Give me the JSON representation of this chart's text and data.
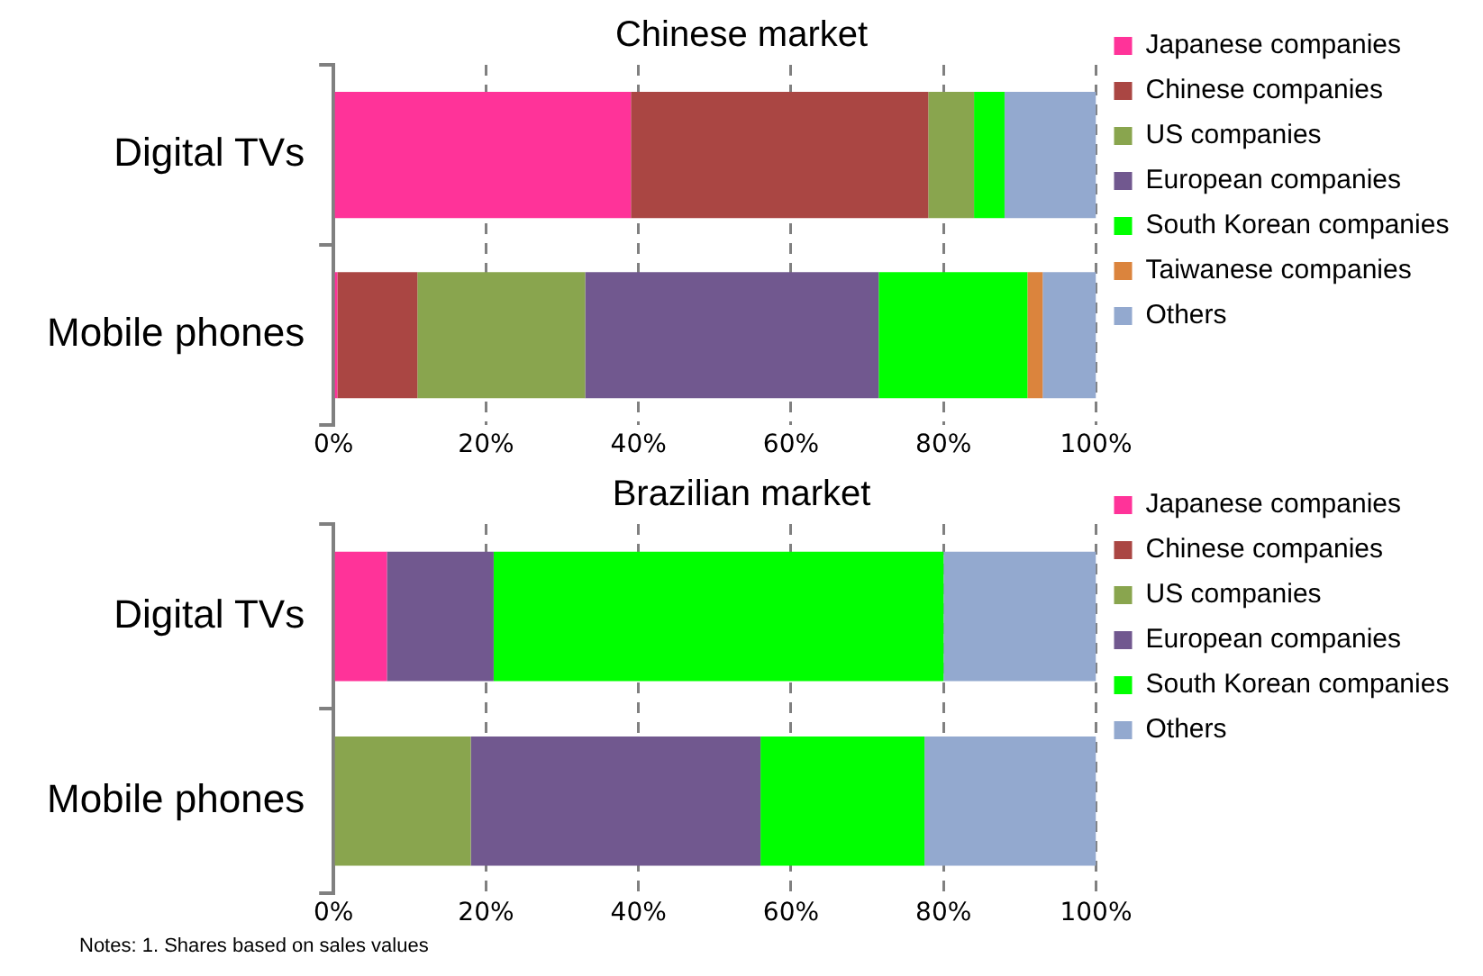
{
  "chart_data": [
    {
      "type": "bar",
      "orientation": "horizontal",
      "stacked": true,
      "title": "Chinese market",
      "categories": [
        "Digital TVs",
        "Mobile phones"
      ],
      "series": [
        {
          "name": "Japanese companies",
          "color": "#ff3399",
          "values": [
            39,
            0.5
          ]
        },
        {
          "name": "Chinese companies",
          "color": "#aa4643",
          "values": [
            39,
            10.5
          ]
        },
        {
          "name": "US companies",
          "color": "#89a54e",
          "values": [
            6,
            22
          ]
        },
        {
          "name": "European companies",
          "color": "#71588f",
          "values": [
            0,
            38.5
          ]
        },
        {
          "name": "South Korean companies",
          "color": "#00ff00",
          "values": [
            4,
            19.5
          ]
        },
        {
          "name": "Taiwanese companies",
          "color": "#db843d",
          "values": [
            0,
            2
          ]
        },
        {
          "name": "Others",
          "color": "#93a9cf",
          "values": [
            12,
            7
          ]
        }
      ],
      "xlim": [
        0,
        100
      ],
      "xticks": [
        {
          "value": 0,
          "label": "0%"
        },
        {
          "value": 20,
          "label": "20%"
        },
        {
          "value": 40,
          "label": "40%"
        },
        {
          "value": 60,
          "label": "60%"
        },
        {
          "value": 80,
          "label": "80%"
        },
        {
          "value": 100,
          "label": "100%"
        }
      ],
      "grid": "x",
      "legend": "right"
    },
    {
      "type": "bar",
      "orientation": "horizontal",
      "stacked": true,
      "title": "Brazilian market",
      "categories": [
        "Digital TVs",
        "Mobile phones"
      ],
      "series": [
        {
          "name": "Japanese companies",
          "color": "#ff3399",
          "values": [
            7,
            0
          ]
        },
        {
          "name": "Chinese companies",
          "color": "#aa4643",
          "values": [
            0,
            0
          ]
        },
        {
          "name": "US companies",
          "color": "#89a54e",
          "values": [
            0,
            18
          ]
        },
        {
          "name": "European companies",
          "color": "#71588f",
          "values": [
            14,
            38
          ]
        },
        {
          "name": "South Korean companies",
          "color": "#00ff00",
          "values": [
            59,
            21.5
          ]
        },
        {
          "name": "Others",
          "color": "#93a9cf",
          "values": [
            20,
            22.5
          ]
        }
      ],
      "xlim": [
        0,
        100
      ],
      "xticks": [
        {
          "value": 0,
          "label": "0%"
        },
        {
          "value": 20,
          "label": "20%"
        },
        {
          "value": 40,
          "label": "40%"
        },
        {
          "value": 60,
          "label": "60%"
        },
        {
          "value": 80,
          "label": "80%"
        },
        {
          "value": 100,
          "label": "100%"
        }
      ],
      "grid": "x",
      "legend": "right",
      "annotations": [
        "Notes: 1. Shares based on sales values"
      ]
    }
  ]
}
